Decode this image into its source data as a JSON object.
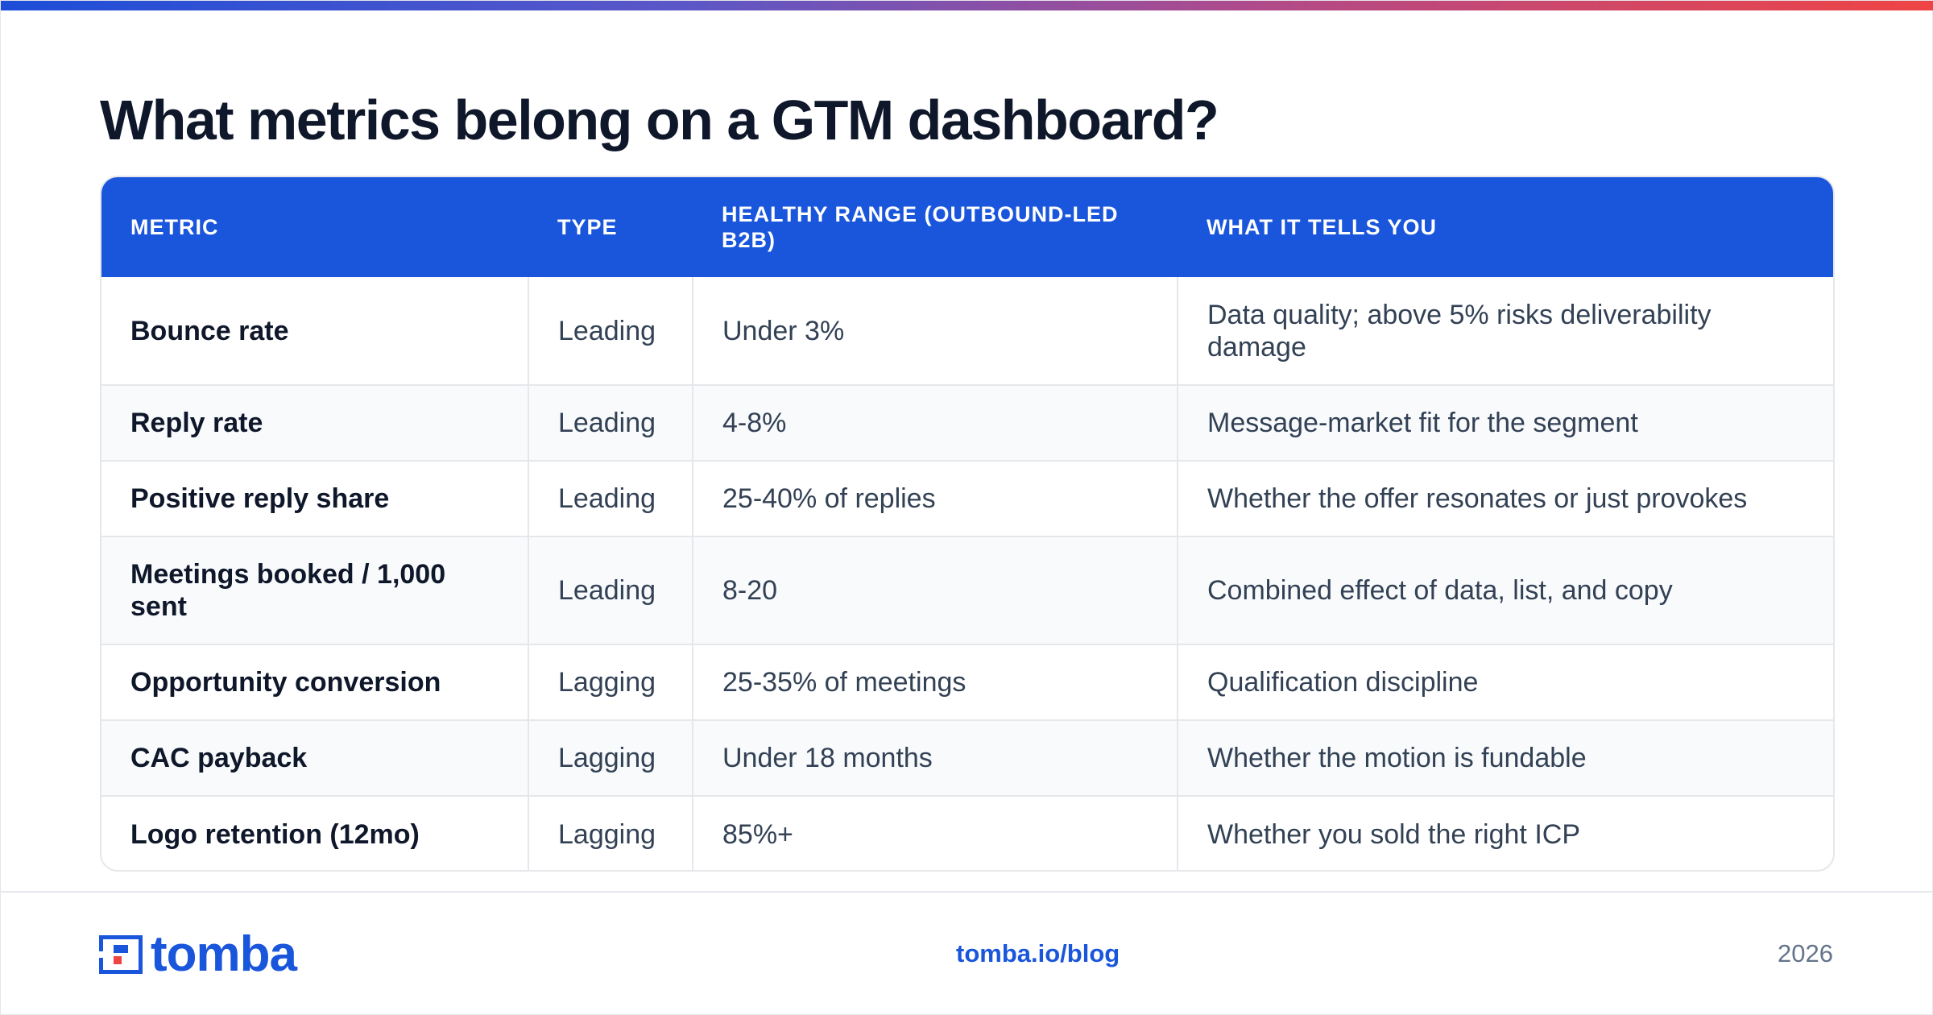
{
  "title": "What metrics belong on a GTM dashboard?",
  "table": {
    "headers": [
      "METRIC",
      "TYPE",
      "HEALTHY RANGE (OUTBOUND-LED B2B)",
      "WHAT IT TELLS YOU"
    ],
    "rows": [
      [
        "Bounce rate",
        "Leading",
        "Under 3%",
        "Data quality; above 5% risks deliverability damage"
      ],
      [
        "Reply rate",
        "Leading",
        "4-8%",
        "Message-market fit for the segment"
      ],
      [
        "Positive reply share",
        "Leading",
        "25-40% of replies",
        "Whether the offer resonates or just provokes"
      ],
      [
        "Meetings booked / 1,000 sent",
        "Leading",
        "8-20",
        "Combined effect of data, list, and copy"
      ],
      [
        "Opportunity conversion",
        "Lagging",
        "25-35% of meetings",
        "Qualification discipline"
      ],
      [
        "CAC payback",
        "Lagging",
        "Under 18 months",
        "Whether the motion is fundable"
      ],
      [
        "Logo retention (12mo)",
        "Lagging",
        "85%+",
        "Whether you sold the right ICP"
      ]
    ]
  },
  "footer": {
    "logo_text": "tomba",
    "link": "tomba.io/blog",
    "year": "2026"
  },
  "colors": {
    "accent": "#1a56db",
    "title": "#0f172a",
    "gradient_start": "#1d4ed8",
    "gradient_end": "#ef4444"
  }
}
